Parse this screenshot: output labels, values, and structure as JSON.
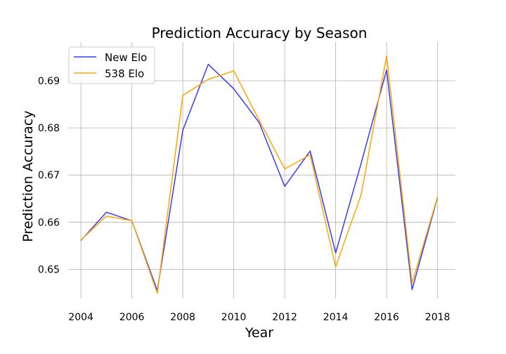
{
  "chart_data": {
    "type": "line",
    "title": "Prediction Accuracy by Season",
    "xlabel": "Year",
    "ylabel": "Prediction Accuracy",
    "xlim": [
      2003.5,
      2018.7
    ],
    "ylim": [
      0.6438,
      0.6982
    ],
    "xticks": [
      2004,
      2006,
      2008,
      2010,
      2012,
      2014,
      2016,
      2018
    ],
    "yticks": [
      0.65,
      0.66,
      0.67,
      0.68,
      0.69
    ],
    "ytick_labels": [
      "0.65",
      "0.66",
      "0.67",
      "0.68",
      "0.69"
    ],
    "grid": true,
    "legend_position": "top-left",
    "x": [
      2004,
      2005,
      2006,
      2007,
      2008,
      2009,
      2010,
      2011,
      2012,
      2013,
      2014,
      2015,
      2016,
      2017,
      2018
    ],
    "series": [
      {
        "name": "New Elo",
        "color": "#3a3af0",
        "values": [
          0.6561,
          0.6621,
          0.6603,
          0.6455,
          0.6795,
          0.6935,
          0.6883,
          0.6811,
          0.6676,
          0.6751,
          0.6535,
          0.6725,
          0.6923,
          0.6457,
          0.6653
        ]
      },
      {
        "name": "538 Elo",
        "color": "#ffa500",
        "values": [
          0.6562,
          0.6613,
          0.6603,
          0.6449,
          0.6869,
          0.6903,
          0.6921,
          0.6816,
          0.6713,
          0.6743,
          0.6505,
          0.6658,
          0.6953,
          0.6471,
          0.6654
        ]
      }
    ]
  }
}
